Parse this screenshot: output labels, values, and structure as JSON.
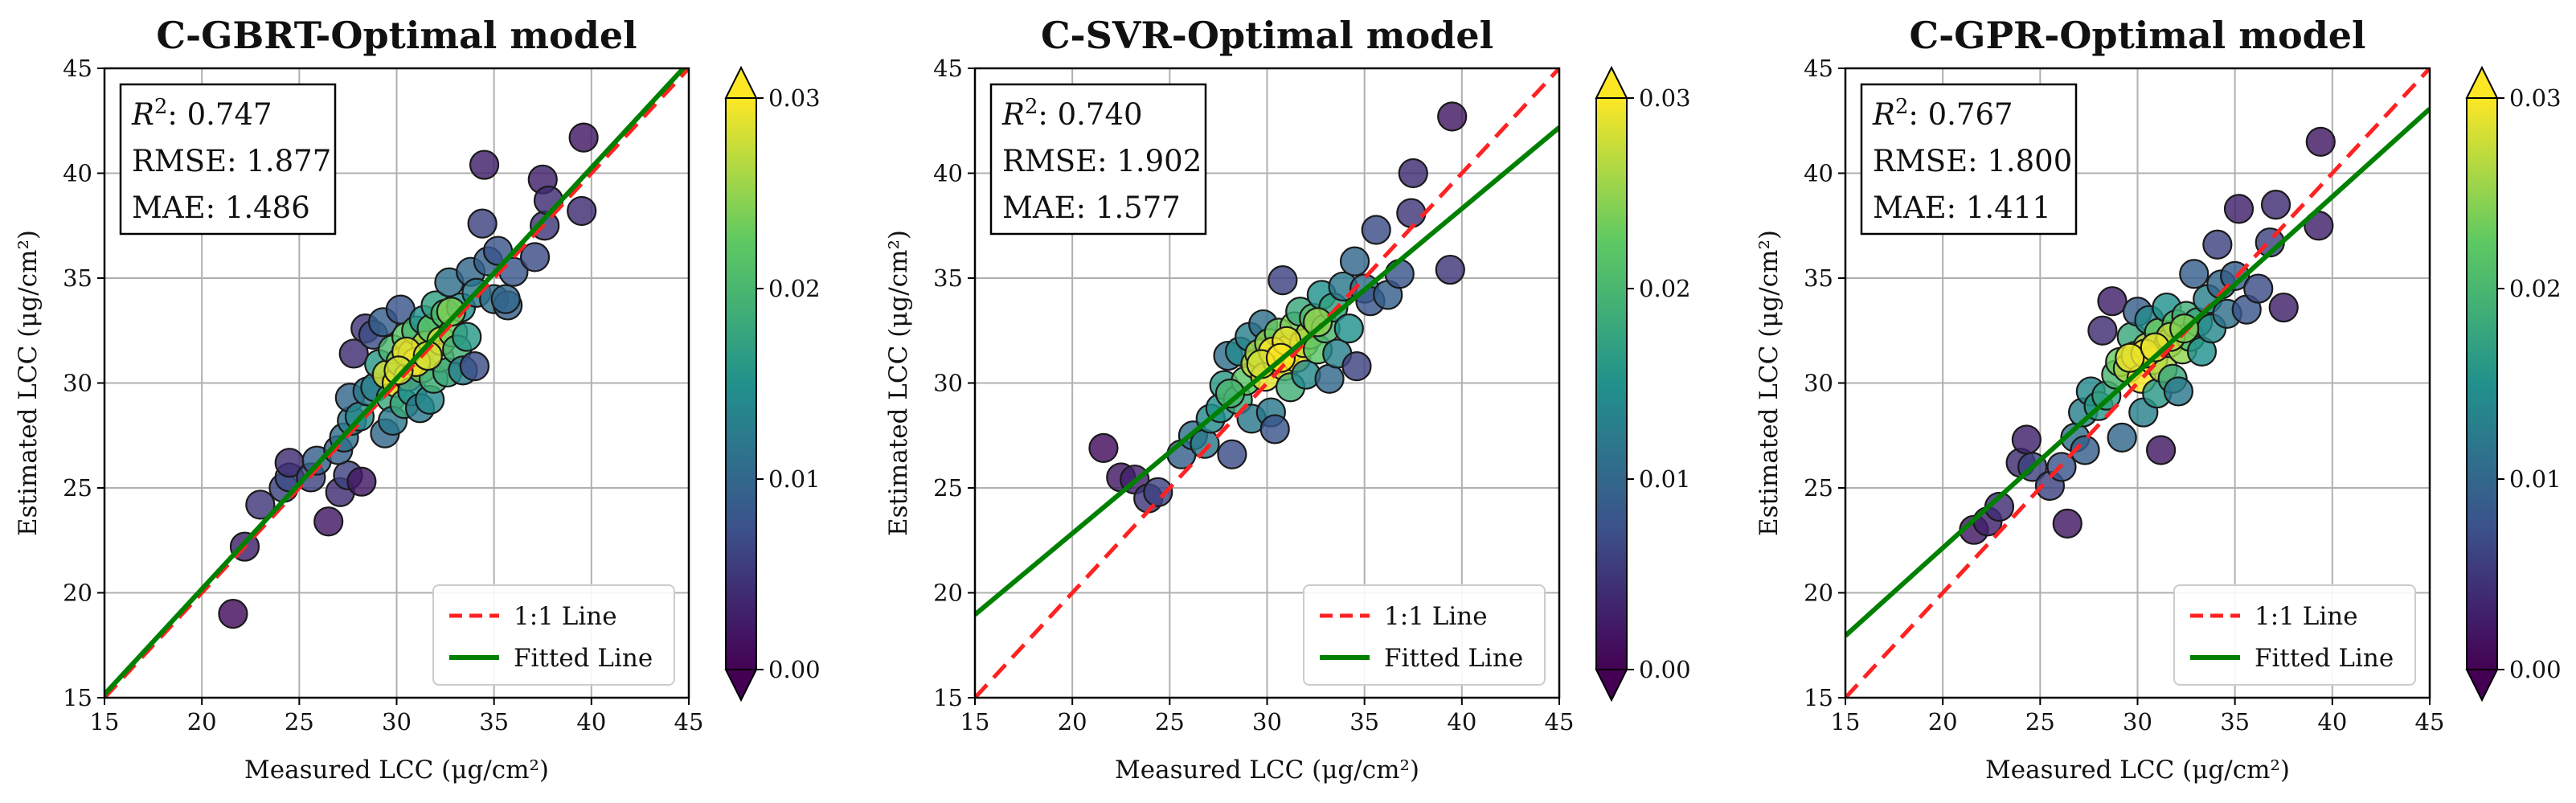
{
  "colorbar": {
    "min": 0.0,
    "max": 0.03,
    "ticks": [
      "0.00",
      "0.01",
      "0.02",
      "0.03"
    ],
    "colormap": [
      "#440154",
      "#3b528b",
      "#21918c",
      "#5ec962",
      "#fde725"
    ]
  },
  "legend": {
    "one_to_one_label": "1:1 Line",
    "fitted_label": "Fitted Line",
    "one_to_one_color": "#ff2222",
    "fitted_color": "#008000"
  },
  "chart_data": [
    {
      "type": "scatter",
      "title": "C-GBRT-Optimal model",
      "xlabel": "Measured LCC (μg/cm²)",
      "ylabel": "Estimated LCC (μg/cm²)",
      "xlim": [
        15,
        45
      ],
      "ylim": [
        15,
        45
      ],
      "xticks": [
        15,
        20,
        25,
        30,
        35,
        40,
        45
      ],
      "yticks": [
        15,
        20,
        25,
        30,
        35,
        40,
        45
      ],
      "grid": true,
      "stats": {
        "r2_label": "R",
        "r2_value": ": 0.747",
        "rmse": "RMSE: 1.877",
        "mae": "MAE: 1.486"
      },
      "fitted_line": {
        "slope": 1.004,
        "intercept": 0.1
      },
      "points": [
        [
          21.6,
          19.0,
          0.001
        ],
        [
          22.2,
          22.2,
          0.003
        ],
        [
          23.0,
          24.2,
          0.005
        ],
        [
          24.2,
          25.0,
          0.006
        ],
        [
          24.5,
          25.5,
          0.007
        ],
        [
          24.5,
          26.2,
          0.004
        ],
        [
          25.6,
          25.5,
          0.006
        ],
        [
          25.9,
          26.3,
          0.009
        ],
        [
          26.5,
          23.4,
          0.002
        ],
        [
          27.1,
          24.8,
          0.004
        ],
        [
          27.5,
          25.6,
          0.006
        ],
        [
          28.2,
          25.3,
          0.002
        ],
        [
          27.0,
          26.8,
          0.009
        ],
        [
          27.3,
          27.4,
          0.011
        ],
        [
          27.7,
          28.2,
          0.012
        ],
        [
          27.6,
          29.3,
          0.01
        ],
        [
          27.8,
          31.4,
          0.004
        ],
        [
          28.1,
          28.4,
          0.014
        ],
        [
          28.5,
          29.6,
          0.012
        ],
        [
          28.4,
          32.6,
          0.005
        ],
        [
          28.8,
          32.3,
          0.007
        ],
        [
          28.9,
          29.8,
          0.013
        ],
        [
          29.1,
          30.9,
          0.016
        ],
        [
          29.4,
          27.6,
          0.01
        ],
        [
          29.3,
          32.9,
          0.009
        ],
        [
          29.5,
          30.4,
          0.028
        ],
        [
          29.7,
          29.3,
          0.018
        ],
        [
          29.8,
          28.2,
          0.012
        ],
        [
          29.8,
          31.6,
          0.02
        ],
        [
          30.0,
          30.0,
          0.03
        ],
        [
          30.2,
          31.0,
          0.025
        ],
        [
          30.2,
          33.5,
          0.008
        ],
        [
          30.4,
          29.0,
          0.018
        ],
        [
          30.5,
          32.2,
          0.022
        ],
        [
          30.6,
          30.3,
          0.029
        ],
        [
          30.8,
          31.4,
          0.026
        ],
        [
          30.8,
          29.6,
          0.015
        ],
        [
          31.0,
          32.5,
          0.02
        ],
        [
          31.2,
          28.8,
          0.012
        ],
        [
          31.3,
          30.7,
          0.024
        ],
        [
          31.4,
          33.0,
          0.015
        ],
        [
          31.5,
          31.8,
          0.027
        ],
        [
          31.7,
          29.2,
          0.014
        ],
        [
          31.8,
          32.6,
          0.022
        ],
        [
          31.9,
          30.2,
          0.019
        ],
        [
          32.0,
          33.7,
          0.017
        ],
        [
          32.2,
          31.2,
          0.025
        ],
        [
          32.3,
          32.0,
          0.028
        ],
        [
          32.5,
          33.3,
          0.021
        ],
        [
          32.6,
          30.5,
          0.018
        ],
        [
          32.7,
          34.8,
          0.011
        ],
        [
          32.9,
          32.4,
          0.023
        ],
        [
          33.1,
          31.6,
          0.019
        ],
        [
          33.3,
          33.6,
          0.015
        ],
        [
          33.4,
          30.6,
          0.013
        ],
        [
          33.6,
          32.2,
          0.016
        ],
        [
          33.8,
          35.3,
          0.01
        ],
        [
          34.0,
          30.8,
          0.007
        ],
        [
          34.1,
          34.3,
          0.012
        ],
        [
          34.4,
          37.6,
          0.006
        ],
        [
          34.5,
          40.4,
          0.003
        ],
        [
          34.7,
          35.8,
          0.009
        ],
        [
          35.0,
          34.0,
          0.011
        ],
        [
          35.2,
          36.3,
          0.008
        ],
        [
          35.7,
          33.7,
          0.009
        ],
        [
          35.6,
          34.0,
          0.01
        ],
        [
          36.0,
          35.3,
          0.008
        ],
        [
          37.1,
          36.0,
          0.007
        ],
        [
          37.5,
          39.7,
          0.003
        ],
        [
          37.6,
          37.5,
          0.005
        ],
        [
          37.8,
          38.7,
          0.004
        ],
        [
          39.5,
          38.2,
          0.004
        ],
        [
          39.6,
          41.7,
          0.002
        ],
        [
          31.0,
          31.0,
          0.03
        ],
        [
          30.5,
          31.5,
          0.029
        ],
        [
          31.6,
          31.3,
          0.028
        ],
        [
          32.8,
          33.4,
          0.024
        ],
        [
          30.1,
          30.6,
          0.028
        ]
      ]
    },
    {
      "type": "scatter",
      "title": "C-SVR-Optimal model",
      "xlabel": "Measured LCC (μg/cm²)",
      "ylabel": "Estimated LCC (μg/cm²)",
      "xlim": [
        15,
        45
      ],
      "ylim": [
        15,
        45
      ],
      "xticks": [
        15,
        20,
        25,
        30,
        35,
        40,
        45
      ],
      "yticks": [
        15,
        20,
        25,
        30,
        35,
        40,
        45
      ],
      "grid": true,
      "stats": {
        "r2_label": "R",
        "r2_value": ": 0.740",
        "rmse": "RMSE: 1.902",
        "mae": "MAE: 1.577"
      },
      "fitted_line": {
        "slope": 0.774,
        "intercept": 7.35
      },
      "points": [
        [
          21.6,
          26.9,
          0.001
        ],
        [
          22.5,
          25.5,
          0.002
        ],
        [
          23.2,
          25.4,
          0.003
        ],
        [
          23.9,
          24.5,
          0.005
        ],
        [
          24.4,
          24.8,
          0.006
        ],
        [
          25.6,
          26.6,
          0.009
        ],
        [
          26.2,
          27.5,
          0.011
        ],
        [
          26.8,
          27.1,
          0.012
        ],
        [
          27.1,
          28.3,
          0.014
        ],
        [
          27.6,
          28.8,
          0.015
        ],
        [
          27.8,
          29.9,
          0.016
        ],
        [
          28.0,
          31.3,
          0.011
        ],
        [
          28.2,
          26.6,
          0.007
        ],
        [
          28.5,
          29.2,
          0.018
        ],
        [
          28.6,
          31.5,
          0.014
        ],
        [
          28.9,
          30.1,
          0.022
        ],
        [
          29.1,
          32.2,
          0.013
        ],
        [
          29.2,
          28.3,
          0.012
        ],
        [
          29.4,
          30.9,
          0.027
        ],
        [
          29.6,
          31.4,
          0.026
        ],
        [
          29.8,
          32.8,
          0.011
        ],
        [
          29.9,
          30.3,
          0.029
        ],
        [
          30.1,
          31.9,
          0.025
        ],
        [
          30.2,
          28.6,
          0.012
        ],
        [
          30.4,
          27.8,
          0.008
        ],
        [
          30.5,
          31.1,
          0.03
        ],
        [
          30.6,
          32.4,
          0.023
        ],
        [
          30.8,
          34.9,
          0.006
        ],
        [
          30.9,
          30.8,
          0.029
        ],
        [
          31.1,
          31.6,
          0.028
        ],
        [
          31.2,
          29.8,
          0.019
        ],
        [
          31.4,
          32.7,
          0.024
        ],
        [
          31.5,
          31.2,
          0.03
        ],
        [
          31.7,
          33.4,
          0.018
        ],
        [
          31.9,
          31.9,
          0.027
        ],
        [
          32.0,
          30.4,
          0.014
        ],
        [
          32.2,
          32.3,
          0.026
        ],
        [
          32.4,
          33.1,
          0.021
        ],
        [
          32.6,
          31.6,
          0.022
        ],
        [
          32.8,
          34.2,
          0.015
        ],
        [
          33.0,
          32.6,
          0.02
        ],
        [
          33.2,
          30.2,
          0.01
        ],
        [
          33.4,
          33.6,
          0.017
        ],
        [
          33.6,
          31.4,
          0.013
        ],
        [
          33.9,
          34.6,
          0.012
        ],
        [
          34.2,
          32.6,
          0.015
        ],
        [
          34.5,
          35.8,
          0.01
        ],
        [
          34.6,
          30.8,
          0.006
        ],
        [
          35.0,
          34.5,
          0.011
        ],
        [
          35.3,
          33.9,
          0.008
        ],
        [
          35.6,
          37.3,
          0.007
        ],
        [
          36.2,
          34.2,
          0.009
        ],
        [
          36.8,
          35.2,
          0.008
        ],
        [
          37.4,
          38.1,
          0.005
        ],
        [
          37.5,
          40.0,
          0.004
        ],
        [
          39.4,
          35.4,
          0.005
        ],
        [
          39.5,
          42.7,
          0.002
        ],
        [
          30.3,
          31.5,
          0.03
        ],
        [
          31.0,
          32.0,
          0.029
        ],
        [
          29.7,
          30.9,
          0.028
        ],
        [
          32.6,
          32.9,
          0.025
        ],
        [
          30.7,
          31.2,
          0.03
        ],
        [
          28.1,
          29.5,
          0.02
        ]
      ]
    },
    {
      "type": "scatter",
      "title": "C-GPR-Optimal model",
      "xlabel": "Measured LCC (μg/cm²)",
      "ylabel": "Estimated LCC (μg/cm²)",
      "xlim": [
        15,
        45
      ],
      "ylim": [
        15,
        45
      ],
      "xticks": [
        15,
        20,
        25,
        30,
        35,
        40,
        45
      ],
      "yticks": [
        15,
        20,
        25,
        30,
        35,
        40,
        45
      ],
      "grid": true,
      "stats": {
        "r2_label": "R",
        "r2_value": ": 0.767",
        "rmse": "RMSE: 1.800",
        "mae": "MAE: 1.411"
      },
      "fitted_line": {
        "slope": 0.837,
        "intercept": 5.4
      },
      "points": [
        [
          21.6,
          23.0,
          0.002
        ],
        [
          22.3,
          23.4,
          0.003
        ],
        [
          22.9,
          24.1,
          0.004
        ],
        [
          24.0,
          26.2,
          0.004
        ],
        [
          24.3,
          27.3,
          0.003
        ],
        [
          24.6,
          26.0,
          0.006
        ],
        [
          25.5,
          25.1,
          0.006
        ],
        [
          26.1,
          26.0,
          0.008
        ],
        [
          26.4,
          23.3,
          0.002
        ],
        [
          26.8,
          27.4,
          0.011
        ],
        [
          27.2,
          28.6,
          0.013
        ],
        [
          27.3,
          26.8,
          0.009
        ],
        [
          27.6,
          29.6,
          0.014
        ],
        [
          28.0,
          28.9,
          0.016
        ],
        [
          28.2,
          32.5,
          0.004
        ],
        [
          28.4,
          29.4,
          0.017
        ],
        [
          28.7,
          33.9,
          0.003
        ],
        [
          28.9,
          30.4,
          0.02
        ],
        [
          29.1,
          31.0,
          0.023
        ],
        [
          29.2,
          27.4,
          0.01
        ],
        [
          29.5,
          30.7,
          0.026
        ],
        [
          29.7,
          32.2,
          0.018
        ],
        [
          29.9,
          31.3,
          0.028
        ],
        [
          30.0,
          33.4,
          0.009
        ],
        [
          30.2,
          30.2,
          0.03
        ],
        [
          30.3,
          28.6,
          0.013
        ],
        [
          30.5,
          31.7,
          0.027
        ],
        [
          30.6,
          33.0,
          0.014
        ],
        [
          30.8,
          31.1,
          0.03
        ],
        [
          31.0,
          29.5,
          0.016
        ],
        [
          31.1,
          32.4,
          0.023
        ],
        [
          31.2,
          26.8,
          0.002
        ],
        [
          31.3,
          30.7,
          0.026
        ],
        [
          31.5,
          33.6,
          0.015
        ],
        [
          31.6,
          31.9,
          0.027
        ],
        [
          31.8,
          30.2,
          0.018
        ],
        [
          32.0,
          32.8,
          0.022
        ],
        [
          32.1,
          29.6,
          0.012
        ],
        [
          32.3,
          31.6,
          0.025
        ],
        [
          32.5,
          33.2,
          0.019
        ],
        [
          32.7,
          32.2,
          0.021
        ],
        [
          32.9,
          35.2,
          0.009
        ],
        [
          33.1,
          32.9,
          0.018
        ],
        [
          33.3,
          31.5,
          0.015
        ],
        [
          33.6,
          34.0,
          0.013
        ],
        [
          33.8,
          32.6,
          0.014
        ],
        [
          34.1,
          36.6,
          0.006
        ],
        [
          34.3,
          34.7,
          0.01
        ],
        [
          34.6,
          33.3,
          0.011
        ],
        [
          35.0,
          35.1,
          0.009
        ],
        [
          35.2,
          38.3,
          0.003
        ],
        [
          35.6,
          33.5,
          0.008
        ],
        [
          36.2,
          34.5,
          0.007
        ],
        [
          36.8,
          36.7,
          0.006
        ],
        [
          37.1,
          38.5,
          0.004
        ],
        [
          37.5,
          33.6,
          0.003
        ],
        [
          39.3,
          37.5,
          0.003
        ],
        [
          39.4,
          41.5,
          0.002
        ],
        [
          30.4,
          31.4,
          0.03
        ],
        [
          29.6,
          31.2,
          0.029
        ],
        [
          31.7,
          32.2,
          0.027
        ],
        [
          30.9,
          31.7,
          0.029
        ],
        [
          32.4,
          32.6,
          0.024
        ]
      ]
    }
  ]
}
